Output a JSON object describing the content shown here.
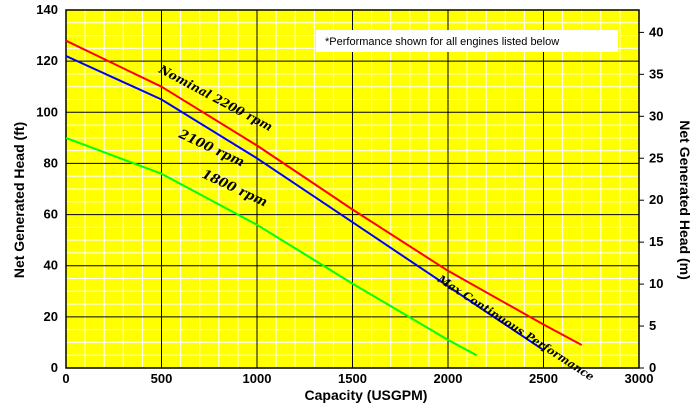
{
  "chart_data": {
    "type": "line",
    "xlabel": "Capacity (USGPM)",
    "ylabel_left": "Net Generated Head  (ft)",
    "ylabel_right": "Net Generated Head  (m)",
    "xlim": [
      0,
      3000
    ],
    "ylim_left": [
      0,
      140
    ],
    "ylim_right": [
      0,
      42.67
    ],
    "x_ticks": [
      0,
      500,
      1000,
      1500,
      2000,
      2500,
      3000
    ],
    "y_ticks_left": [
      0,
      20,
      40,
      60,
      80,
      100,
      120,
      140
    ],
    "y_ticks_right": [
      0,
      5,
      10,
      15,
      20,
      25,
      30,
      35,
      40
    ],
    "grid": true,
    "background": "#ffff00",
    "grid_major_color": "#000000",
    "grid_minor_color": "#ffffff",
    "note": "*Performance shown for all engines listed below",
    "series": [
      {
        "name": "Nominal 2200 rpm",
        "color": "#ff0000",
        "x": [
          0,
          500,
          1000,
          1500,
          2000,
          2500,
          2700
        ],
        "y": [
          128,
          110,
          87,
          62,
          38,
          17,
          9
        ]
      },
      {
        "name": "2100 rpm",
        "color": "#0000ff",
        "x": [
          0,
          500,
          1000,
          1500,
          2000,
          2500
        ],
        "y": [
          122,
          105,
          82,
          57,
          32,
          7
        ]
      },
      {
        "name": "1800 rpm",
        "color": "#00ff00",
        "x": [
          0,
          500,
          1000,
          1500,
          2000,
          2150
        ],
        "y": [
          90,
          76,
          56,
          33,
          11,
          5
        ]
      }
    ],
    "annotations": [
      {
        "text": "Max Continuous Performance",
        "x": 2300,
        "y": 24
      }
    ]
  }
}
